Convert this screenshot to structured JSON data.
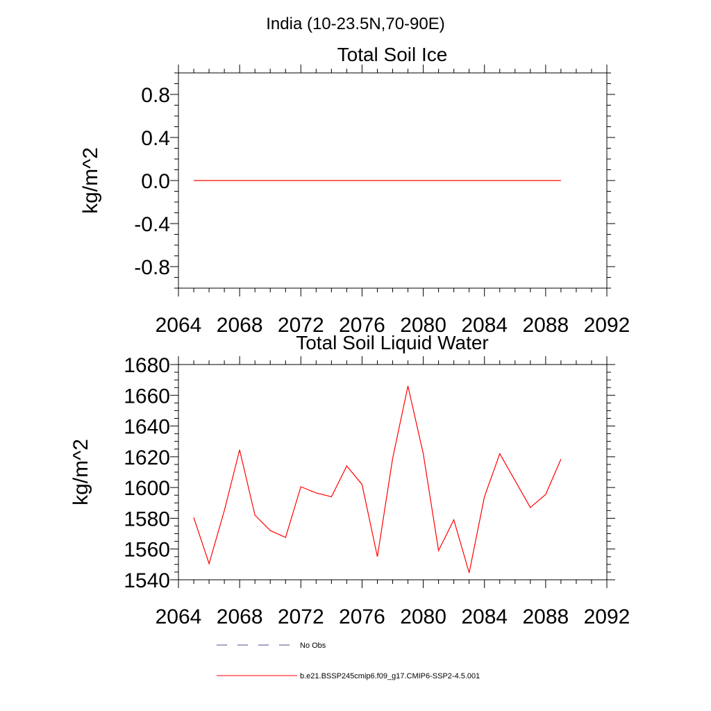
{
  "suptitle": "India (10-23.5N,70-90E)",
  "legend": [
    {
      "label": "No Obs",
      "color": "#4a4a8a",
      "dash": "dashed"
    },
    {
      "label": "b.e21.BSSP245cmip6.f09_g17.CMIP6-SSP2-4.5.001",
      "color": "#ff0000",
      "dash": "solid"
    }
  ],
  "chart_data": [
    {
      "type": "line",
      "title": "Total Soil Ice",
      "xlabel": "",
      "ylabel": "kg/m^2",
      "xlim": [
        2064,
        2092
      ],
      "ylim": [
        -1.0,
        1.0
      ],
      "xticks": [
        2064,
        2068,
        2072,
        2076,
        2080,
        2084,
        2088,
        2092
      ],
      "yticks": [
        -0.8,
        -0.4,
        0.0,
        0.4,
        0.8
      ],
      "ytick_labels": [
        "-0.8",
        "-0.4",
        "0.0",
        "0.4",
        "0.8"
      ],
      "grid": false,
      "series": [
        {
          "color": "#ff0000",
          "x": [
            2065,
            2066,
            2067,
            2068,
            2069,
            2070,
            2071,
            2072,
            2073,
            2074,
            2075,
            2076,
            2077,
            2078,
            2079,
            2080,
            2081,
            2082,
            2083,
            2084,
            2085,
            2086,
            2087,
            2088,
            2089
          ],
          "values": [
            0,
            0,
            0,
            0,
            0,
            0,
            0,
            0,
            0,
            0,
            0,
            0,
            0,
            0,
            0,
            0,
            0,
            0,
            0,
            0,
            0,
            0,
            0,
            0,
            0
          ]
        }
      ]
    },
    {
      "type": "line",
      "title": "Total Soil Liquid Water",
      "xlabel": "",
      "ylabel": "kg/m^2",
      "xlim": [
        2064,
        2092
      ],
      "ylim": [
        1540,
        1680
      ],
      "xticks": [
        2064,
        2068,
        2072,
        2076,
        2080,
        2084,
        2088,
        2092
      ],
      "yticks": [
        1540,
        1560,
        1580,
        1600,
        1620,
        1640,
        1660,
        1680
      ],
      "ytick_labels": [
        "1540",
        "1560",
        "1580",
        "1600",
        "1620",
        "1640",
        "1660",
        "1680"
      ],
      "grid": false,
      "series": [
        {
          "color": "#ff0000",
          "x": [
            2065,
            2066,
            2067,
            2068,
            2069,
            2070,
            2071,
            2072,
            2073,
            2074,
            2075,
            2076,
            2077,
            2078,
            2079,
            2080,
            2081,
            2082,
            2083,
            2084,
            2085,
            2086,
            2087,
            2088,
            2089
          ],
          "values": [
            1580.5,
            1550.5,
            1585,
            1624.5,
            1582,
            1572,
            1567.5,
            1600.5,
            1596.5,
            1594,
            1614,
            1602,
            1555,
            1619,
            1666,
            1622,
            1559,
            1579,
            1544.5,
            1594,
            1622,
            1604.5,
            1587,
            1595.5,
            1618.5
          ]
        }
      ]
    }
  ]
}
